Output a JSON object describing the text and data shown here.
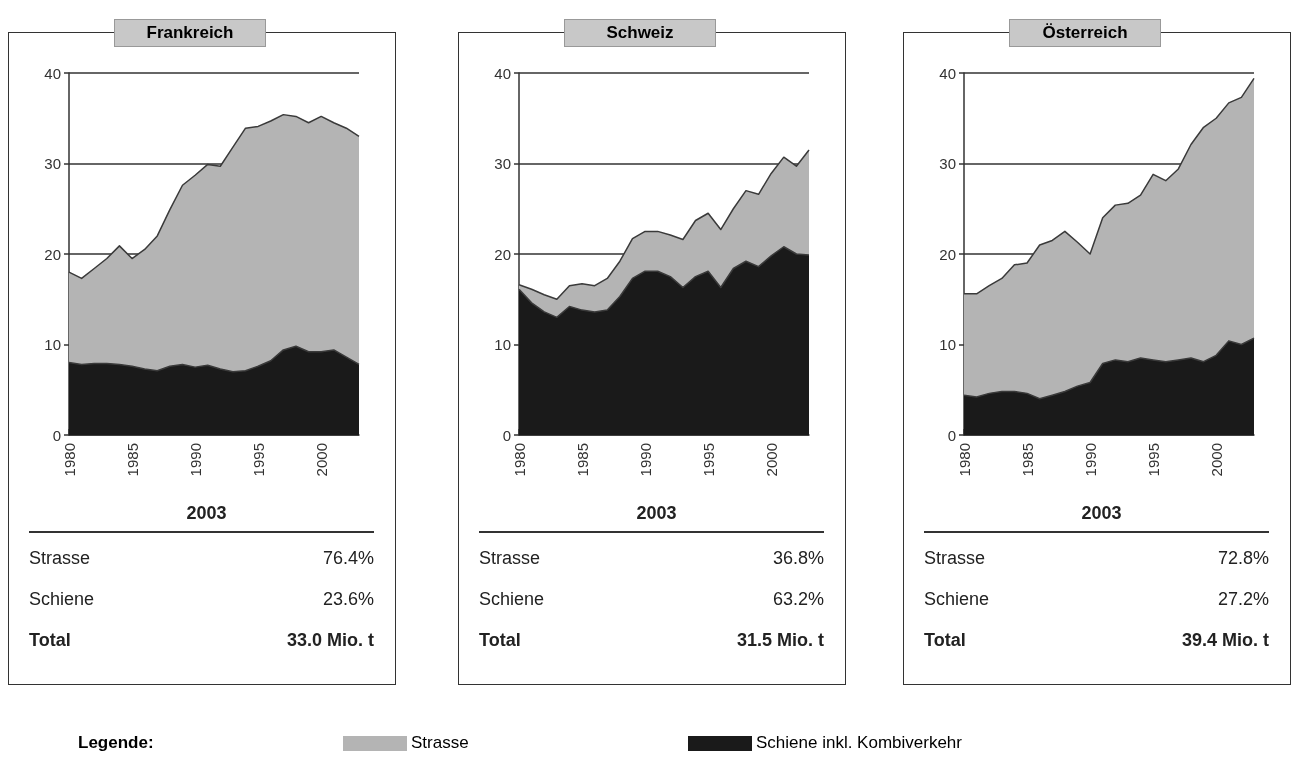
{
  "chart_data": [
    {
      "type": "area",
      "title": "Frankreich",
      "stacked": true,
      "legend": "bottom",
      "legend_title": "Legende:",
      "grid": "y",
      "x": [
        1980,
        1981,
        1982,
        1983,
        1984,
        1985,
        1986,
        1987,
        1988,
        1989,
        1990,
        1991,
        1992,
        1993,
        1994,
        1995,
        1996,
        1997,
        1998,
        1999,
        2000,
        2001,
        2002,
        2003
      ],
      "xlim": [
        1980,
        2003
      ],
      "xticks": [
        1980,
        1985,
        1990,
        1995,
        2000
      ],
      "ylim": [
        0,
        40
      ],
      "yticks": [
        0,
        10,
        20,
        30,
        40
      ],
      "series": [
        {
          "name": "Schiene inkl. Kombiverkehr",
          "color": "#1a1a1a",
          "values": [
            8.0,
            7.8,
            7.9,
            7.9,
            7.8,
            7.6,
            7.3,
            7.1,
            7.6,
            7.8,
            7.5,
            7.7,
            7.3,
            7.0,
            7.1,
            7.6,
            8.2,
            9.4,
            9.8,
            9.2,
            9.2,
            9.4,
            8.6,
            7.8
          ]
        },
        {
          "name": "Strasse",
          "color": "#b4b4b4",
          "values": [
            10.0,
            9.5,
            10.5,
            11.6,
            13.1,
            11.9,
            13.2,
            14.9,
            17.3,
            19.8,
            21.2,
            22.2,
            22.4,
            24.8,
            26.8,
            26.5,
            26.5,
            26.0,
            25.4,
            25.3,
            26.0,
            25.1,
            25.3,
            25.2
          ]
        }
      ],
      "annotations": [
        "2003",
        "Strasse",
        "76.4%",
        "Schiene",
        "23.6%",
        "Total",
        "33.0 Mio. t"
      ]
    },
    {
      "type": "area",
      "title": "Schweiz",
      "stacked": true,
      "grid": "y",
      "x": [
        1980,
        1981,
        1982,
        1983,
        1984,
        1985,
        1986,
        1987,
        1988,
        1989,
        1990,
        1991,
        1992,
        1993,
        1994,
        1995,
        1996,
        1997,
        1998,
        1999,
        2000,
        2001,
        2002,
        2003
      ],
      "xlim": [
        1980,
        2003
      ],
      "xticks": [
        1980,
        1985,
        1990,
        1995,
        2000
      ],
      "ylim": [
        0,
        40
      ],
      "yticks": [
        0,
        10,
        20,
        30,
        40
      ],
      "series": [
        {
          "color": "#1a1a1a",
          "values": [
            16.1,
            14.6,
            13.6,
            13.0,
            14.2,
            13.8,
            13.6,
            13.8,
            15.3,
            17.3,
            18.1,
            18.1,
            17.5,
            16.3,
            17.5,
            18.1,
            16.3,
            18.4,
            19.2,
            18.6,
            19.8,
            20.8,
            20.0,
            19.9
          ]
        },
        {
          "color": "#b4b4b4",
          "values": [
            0.5,
            1.5,
            1.9,
            2.0,
            2.3,
            2.9,
            2.9,
            3.5,
            3.9,
            4.4,
            4.4,
            4.4,
            4.6,
            5.3,
            6.2,
            6.4,
            6.4,
            6.6,
            7.8,
            8.0,
            9.1,
            9.9,
            9.7,
            11.6
          ]
        }
      ],
      "annotations": [
        "2003",
        "Strasse",
        "36.8%",
        "Schiene",
        "63.2%",
        "Total",
        "31.5 Mio. t"
      ]
    },
    {
      "type": "area",
      "title": "Österreich",
      "stacked": true,
      "grid": "y",
      "x": [
        1980,
        1981,
        1982,
        1983,
        1984,
        1985,
        1986,
        1987,
        1988,
        1989,
        1990,
        1991,
        1992,
        1993,
        1994,
        1995,
        1996,
        1997,
        1998,
        1999,
        2000,
        2001,
        2002,
        2003
      ],
      "xlim": [
        1980,
        2003
      ],
      "xticks": [
        1980,
        1985,
        1990,
        1995,
        2000
      ],
      "ylim": [
        0,
        40
      ],
      "yticks": [
        0,
        10,
        20,
        30,
        40
      ],
      "series": [
        {
          "color": "#1a1a1a",
          "values": [
            4.4,
            4.2,
            4.6,
            4.8,
            4.8,
            4.6,
            4.0,
            4.4,
            4.8,
            5.4,
            5.8,
            7.9,
            8.3,
            8.1,
            8.5,
            8.3,
            8.1,
            8.3,
            8.5,
            8.1,
            8.8,
            10.4,
            10.0,
            10.7
          ]
        },
        {
          "color": "#b4b4b4",
          "values": [
            11.2,
            11.4,
            11.9,
            12.5,
            14.0,
            14.4,
            17.0,
            17.1,
            17.7,
            15.9,
            14.2,
            16.1,
            17.1,
            17.5,
            18.0,
            20.5,
            20.0,
            21.1,
            23.6,
            25.9,
            26.2,
            26.3,
            27.3,
            28.7
          ]
        }
      ],
      "annotations": [
        "2003",
        "Strasse",
        "72.8%",
        "Schiene",
        "27.2%",
        "Total",
        "39.4 Mio. t"
      ]
    }
  ]
}
